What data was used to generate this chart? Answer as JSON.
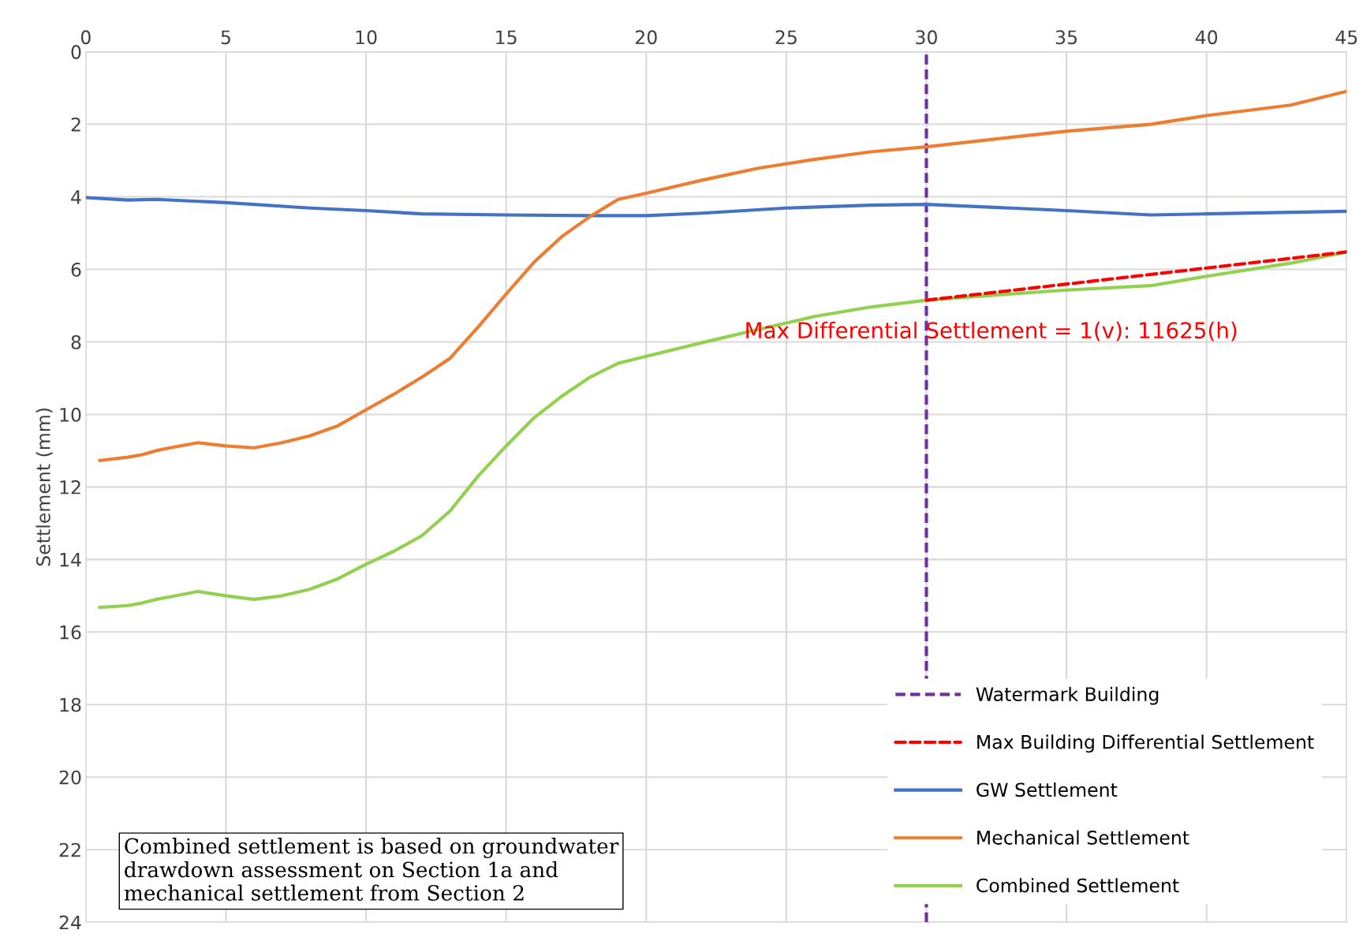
{
  "chart_data": {
    "type": "line",
    "ylabel": "Settlement (mm)",
    "xlim": [
      0,
      45
    ],
    "xticks": [
      0,
      5,
      10,
      15,
      20,
      25,
      30,
      35,
      40,
      45
    ],
    "ylim": [
      24,
      0
    ],
    "yticks": [
      0,
      2,
      4,
      6,
      8,
      10,
      12,
      14,
      16,
      18,
      20,
      22,
      24
    ],
    "grid": true,
    "legend": "bottom right",
    "tick_labels": "xy",
    "ref_lines": [
      {
        "axis": "x",
        "value": 30,
        "label": "Watermark Building",
        "color": "#7030a0",
        "line_style": "dashed"
      }
    ],
    "series": [
      {
        "name": "Max Building Differential Settlement",
        "color": "#ff0000",
        "line_style": "dashed",
        "x": [
          30,
          45
        ],
        "values": [
          6.85,
          5.52
        ]
      },
      {
        "name": "GW Settlement",
        "color": "#4472c4",
        "x": [
          0,
          1.5,
          2.5,
          5,
          8,
          10,
          12,
          15,
          18,
          20,
          22,
          25,
          28,
          30,
          33,
          35,
          38,
          40,
          45
        ],
        "values": [
          4.02,
          4.09,
          4.07,
          4.16,
          4.31,
          4.38,
          4.47,
          4.5,
          4.52,
          4.52,
          4.45,
          4.31,
          4.23,
          4.21,
          4.31,
          4.38,
          4.5,
          4.47,
          4.4
        ]
      },
      {
        "name": "Mechanical Settlement",
        "color": "#ed7d31",
        "x": [
          0.5,
          1.5,
          2,
          2.5,
          3,
          4,
          5,
          6,
          7,
          8,
          9,
          10,
          11,
          12,
          13,
          14,
          15,
          16,
          17,
          18,
          19,
          20,
          22,
          24,
          26,
          28,
          30,
          33,
          35,
          38,
          40,
          43,
          45
        ],
        "values": [
          11.27,
          11.18,
          11.11,
          11.0,
          10.92,
          10.78,
          10.87,
          10.92,
          10.78,
          10.59,
          10.31,
          9.87,
          9.44,
          8.97,
          8.45,
          7.59,
          6.68,
          5.8,
          5.09,
          4.54,
          4.07,
          3.9,
          3.54,
          3.21,
          2.97,
          2.76,
          2.62,
          2.36,
          2.19,
          2.0,
          1.76,
          1.47,
          1.09
        ]
      },
      {
        "name": "Combined Settlement",
        "color": "#92d050",
        "x": [
          0.5,
          1.5,
          2,
          2.5,
          3,
          4,
          5,
          6,
          7,
          8,
          9,
          10,
          11,
          12,
          13,
          14,
          15,
          16,
          17,
          18,
          19,
          20,
          22,
          24,
          26,
          28,
          30,
          33,
          35,
          38,
          40,
          43,
          45
        ],
        "values": [
          15.32,
          15.27,
          15.2,
          15.1,
          15.03,
          14.88,
          15.0,
          15.1,
          15.0,
          14.82,
          14.53,
          14.13,
          13.77,
          13.34,
          12.66,
          11.7,
          10.87,
          10.09,
          9.49,
          8.97,
          8.59,
          8.4,
          8.02,
          7.66,
          7.3,
          7.04,
          6.85,
          6.68,
          6.57,
          6.45,
          6.19,
          5.83,
          5.52
        ]
      }
    ],
    "annotations": [
      {
        "text": "Max Differential Settlement = 1(v): 11625(h)",
        "x": 30,
        "y": 6.85
      },
      "Combined settlement is based on groundwater drawdown assessment on Section 1a and mechanical settlement from Section 2"
    ]
  }
}
